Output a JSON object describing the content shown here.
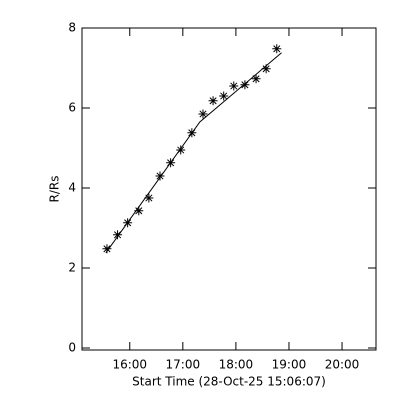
{
  "chart_data": {
    "type": "scatter",
    "xlabel": "Start Time (28-Oct-25 15:06:07)",
    "ylabel": "R/Rs",
    "xlim": [
      15.1,
      20.64
    ],
    "ylim": [
      0,
      8
    ],
    "xticks": [
      {
        "value": 16,
        "label": "16:00"
      },
      {
        "value": 17,
        "label": "17:00"
      },
      {
        "value": 18,
        "label": "18:00"
      },
      {
        "value": 19,
        "label": "19:00"
      },
      {
        "value": 20,
        "label": "20:00"
      }
    ],
    "yticks": [
      0,
      2,
      4,
      6,
      8
    ],
    "color": "#000000",
    "series": [
      {
        "marker": "asterisk",
        "x": [
          15.57,
          15.77,
          15.96,
          16.17,
          16.36,
          16.57,
          16.77,
          16.96,
          17.17,
          17.38,
          17.57,
          17.77,
          17.96,
          18.17,
          18.38,
          18.57,
          18.77
        ],
        "values": [
          2.48,
          2.83,
          3.13,
          3.43,
          3.75,
          4.3,
          4.63,
          4.95,
          5.38,
          5.85,
          6.18,
          6.3,
          6.55,
          6.58,
          6.73,
          6.98,
          7.48
        ]
      },
      {
        "marker": "line",
        "x": [
          15.55,
          17.32,
          18.86
        ],
        "values": [
          2.38,
          5.65,
          7.38
        ]
      }
    ]
  }
}
